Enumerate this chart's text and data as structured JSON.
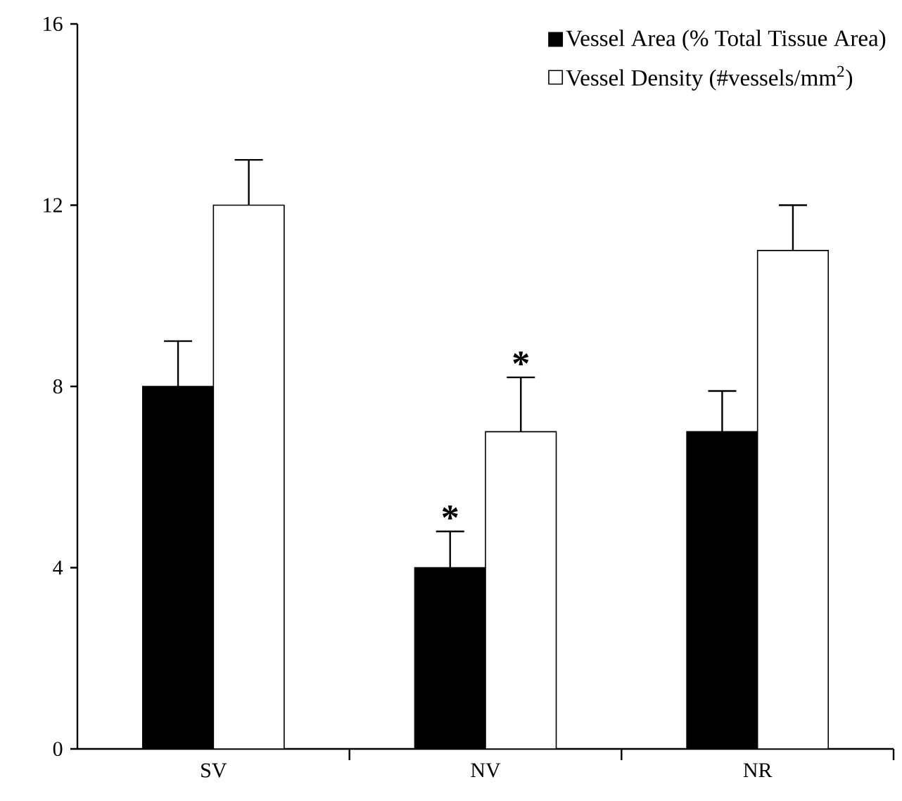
{
  "chart_data": {
    "type": "bar",
    "categories": [
      "SV",
      "NV",
      "NR"
    ],
    "series": [
      {
        "name": "Vessel Area (% Total Tissue Area)",
        "color": "#000000",
        "values": [
          8,
          4,
          7
        ],
        "errors": [
          [
            8,
            9
          ],
          [
            4,
            4.8
          ],
          [
            7,
            7.9
          ]
        ]
      },
      {
        "name": "Vessel Density (#vessels/mm$^{2}$)",
        "color": "#ffffff",
        "values": [
          12,
          7,
          11
        ],
        "errors": [
          [
            12,
            13
          ],
          [
            7,
            8.2
          ],
          [
            11,
            12
          ]
        ]
      }
    ],
    "ylim": [
      0,
      16
    ],
    "yticks": [
      0,
      4,
      8,
      12,
      16
    ],
    "legend": "top right",
    "grid": false,
    "annotations": [
      {
        "text": "*",
        "x": "NV",
        "y": 4
      },
      {
        "text": "*",
        "x": "NV",
        "y": 7
      }
    ]
  }
}
